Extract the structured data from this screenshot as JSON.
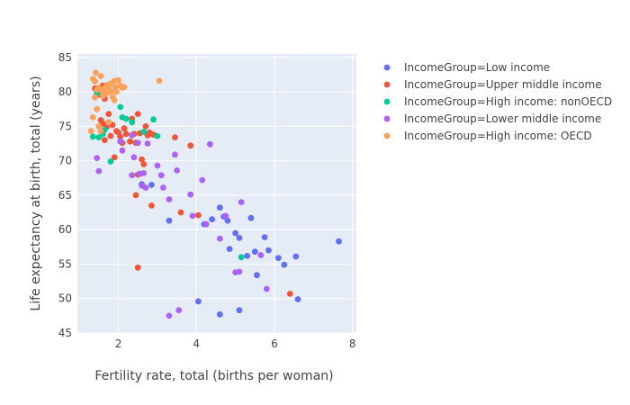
{
  "chart_data": {
    "type": "scatter",
    "title": "",
    "xlabel": "Fertility rate, total (births per woman)",
    "ylabel": "Life expectancy at birth, total (years)",
    "xlim": [
      0.95,
      8.1
    ],
    "ylim": [
      45,
      85.5
    ],
    "xticks": [
      2,
      4,
      6,
      8
    ],
    "yticks": [
      45,
      50,
      55,
      60,
      65,
      70,
      75,
      80,
      85
    ],
    "grid": true,
    "legend_position": "right",
    "series": [
      {
        "name": "IncomeGroup=Low income",
        "color": "#636efa",
        "points": [
          [
            3.3,
            61.3
          ],
          [
            4.6,
            63.2
          ],
          [
            4.7,
            61.9
          ],
          [
            4.8,
            61.3
          ],
          [
            4.2,
            60.8
          ],
          [
            4.4,
            61.5
          ],
          [
            5.4,
            61.7
          ],
          [
            5.0,
            59.5
          ],
          [
            5.1,
            58.8
          ],
          [
            5.75,
            58.9
          ],
          [
            5.85,
            57.0
          ],
          [
            5.3,
            56.2
          ],
          [
            4.85,
            57.2
          ],
          [
            5.5,
            56.8
          ],
          [
            5.55,
            53.4
          ],
          [
            6.1,
            55.9
          ],
          [
            6.25,
            54.9
          ],
          [
            6.55,
            56.1
          ],
          [
            7.65,
            58.3
          ],
          [
            5.1,
            48.3
          ],
          [
            4.6,
            47.7
          ],
          [
            4.05,
            49.6
          ],
          [
            6.6,
            49.9
          ],
          [
            2.6,
            66.6
          ],
          [
            2.85,
            66.5
          ]
        ]
      },
      {
        "name": "IncomeGroup=Upper middle income",
        "color": "#ef553b",
        "points": [
          [
            1.4,
            80.5
          ],
          [
            1.5,
            79.6
          ],
          [
            1.55,
            75.9
          ],
          [
            1.6,
            75.4
          ],
          [
            1.65,
            73.0
          ],
          [
            1.7,
            74.9
          ],
          [
            1.75,
            76.8
          ],
          [
            1.8,
            73.6
          ],
          [
            1.85,
            75.2
          ],
          [
            1.9,
            70.5
          ],
          [
            1.95,
            74.3
          ],
          [
            2.0,
            74.1
          ],
          [
            2.05,
            73.5
          ],
          [
            2.1,
            72.6
          ],
          [
            2.15,
            74.7
          ],
          [
            2.2,
            73.9
          ],
          [
            2.3,
            72.8
          ],
          [
            2.35,
            76.1
          ],
          [
            2.4,
            73.9
          ],
          [
            2.45,
            72.6
          ],
          [
            2.5,
            76.8
          ],
          [
            2.55,
            74.0
          ],
          [
            2.6,
            70.2
          ],
          [
            2.65,
            69.5
          ],
          [
            2.7,
            75.0
          ],
          [
            2.75,
            73.7
          ],
          [
            2.8,
            74.1
          ],
          [
            2.9,
            73.8
          ],
          [
            2.85,
            63.5
          ],
          [
            2.5,
            68.0
          ],
          [
            2.45,
            65.0
          ],
          [
            2.5,
            54.5
          ],
          [
            3.45,
            73.4
          ],
          [
            3.6,
            62.5
          ],
          [
            3.85,
            72.2
          ],
          [
            4.05,
            62.1
          ],
          [
            6.4,
            50.7
          ],
          [
            1.65,
            79.0
          ],
          [
            1.6,
            80.9
          ]
        ]
      },
      {
        "name": "IncomeGroup=High income: nonOECD",
        "color": "#00cc96",
        "points": [
          [
            1.35,
            73.5
          ],
          [
            1.5,
            73.4
          ],
          [
            1.6,
            73.9
          ],
          [
            1.45,
            79.8
          ],
          [
            1.8,
            69.9
          ],
          [
            2.05,
            77.8
          ],
          [
            2.1,
            76.3
          ],
          [
            2.2,
            76.1
          ],
          [
            2.35,
            75.6
          ],
          [
            2.65,
            74.2
          ],
          [
            2.9,
            76.0
          ],
          [
            3.0,
            73.6
          ],
          [
            5.15,
            56.0
          ],
          [
            1.65,
            74.5
          ]
        ]
      },
      {
        "name": "IncomeGroup=Lower middle income",
        "color": "#ab63fa",
        "points": [
          [
            1.45,
            70.4
          ],
          [
            1.5,
            68.5
          ],
          [
            2.05,
            72.8
          ],
          [
            2.1,
            71.5
          ],
          [
            2.35,
            73.7
          ],
          [
            2.4,
            70.5
          ],
          [
            2.35,
            67.9
          ],
          [
            2.5,
            72.6
          ],
          [
            2.55,
            68.1
          ],
          [
            2.6,
            66.4
          ],
          [
            2.65,
            68.2
          ],
          [
            2.7,
            66.1
          ],
          [
            2.75,
            72.5
          ],
          [
            3.0,
            69.3
          ],
          [
            3.1,
            67.9
          ],
          [
            3.15,
            66.1
          ],
          [
            3.3,
            64.4
          ],
          [
            3.45,
            70.9
          ],
          [
            3.5,
            68.6
          ],
          [
            3.85,
            65.1
          ],
          [
            3.9,
            62.0
          ],
          [
            4.15,
            67.2
          ],
          [
            4.35,
            72.4
          ],
          [
            4.25,
            60.8
          ],
          [
            4.6,
            58.7
          ],
          [
            4.75,
            62.0
          ],
          [
            5.0,
            53.8
          ],
          [
            5.1,
            53.9
          ],
          [
            5.15,
            64.0
          ],
          [
            5.65,
            56.3
          ],
          [
            5.8,
            51.4
          ],
          [
            3.3,
            47.5
          ],
          [
            3.55,
            48.3
          ]
        ]
      },
      {
        "name": "IncomeGroup=High income: OECD",
        "color": "#fea15a",
        "points": [
          [
            1.3,
            74.3
          ],
          [
            1.35,
            76.3
          ],
          [
            1.4,
            79.2
          ],
          [
            1.4,
            81.5
          ],
          [
            1.42,
            82.8
          ],
          [
            1.45,
            80.3
          ],
          [
            1.5,
            80.6
          ],
          [
            1.55,
            82.3
          ],
          [
            1.6,
            80.0
          ],
          [
            1.6,
            79.4
          ],
          [
            1.65,
            80.5
          ],
          [
            1.7,
            81.0
          ],
          [
            1.7,
            79.8
          ],
          [
            1.75,
            80.8
          ],
          [
            1.8,
            81.2
          ],
          [
            1.8,
            80.1
          ],
          [
            1.85,
            79.3
          ],
          [
            1.9,
            81.6
          ],
          [
            1.92,
            80.7
          ],
          [
            1.95,
            80.0
          ],
          [
            2.0,
            81.7
          ],
          [
            2.05,
            80.9
          ],
          [
            2.1,
            80.6
          ],
          [
            2.15,
            80.7
          ],
          [
            1.9,
            78.8
          ],
          [
            1.5,
            75.0
          ],
          [
            1.55,
            74.3
          ],
          [
            1.75,
            75.6
          ],
          [
            3.05,
            81.6
          ],
          [
            1.35,
            81.9
          ],
          [
            1.45,
            77.5
          ]
        ]
      }
    ]
  }
}
